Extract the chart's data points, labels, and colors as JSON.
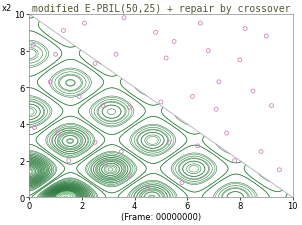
{
  "title": "modified E-PBIL(50,25) + repair by crossover",
  "xlabel": "(Frame: 00000000)",
  "ylabel": "x2",
  "xlim": [
    0,
    10
  ],
  "ylim": [
    0,
    10
  ],
  "xticks": [
    0,
    2,
    4,
    6,
    8,
    10
  ],
  "yticks": [
    0,
    2,
    4,
    6,
    8,
    10
  ],
  "contour_color": "#44aa55",
  "scatter_color": "#cc88bb",
  "scatter_size": 8,
  "scatter_points": [
    [
      0.15,
      8.3
    ],
    [
      1.3,
      9.1
    ],
    [
      2.1,
      9.5
    ],
    [
      3.6,
      9.8
    ],
    [
      1.0,
      7.8
    ],
    [
      2.5,
      7.3
    ],
    [
      3.3,
      7.8
    ],
    [
      5.2,
      7.6
    ],
    [
      0.8,
      6.3
    ],
    [
      1.9,
      5.5
    ],
    [
      2.8,
      5.0
    ],
    [
      3.8,
      4.9
    ],
    [
      0.2,
      3.8
    ],
    [
      1.1,
      3.5
    ],
    [
      2.5,
      3.0
    ],
    [
      3.5,
      2.5
    ],
    [
      1.5,
      2.0
    ],
    [
      2.9,
      1.8
    ],
    [
      3.8,
      1.2
    ],
    [
      5.0,
      5.2
    ],
    [
      6.2,
      5.5
    ],
    [
      7.1,
      4.8
    ],
    [
      5.3,
      3.0
    ],
    [
      6.4,
      2.8
    ],
    [
      7.5,
      3.5
    ],
    [
      5.5,
      8.5
    ],
    [
      6.8,
      8.0
    ],
    [
      8.0,
      7.5
    ],
    [
      7.2,
      6.3
    ],
    [
      8.5,
      5.8
    ],
    [
      9.2,
      5.0
    ],
    [
      7.8,
      2.0
    ],
    [
      8.8,
      2.5
    ],
    [
      9.5,
      1.5
    ],
    [
      9.0,
      8.8
    ],
    [
      8.2,
      9.2
    ],
    [
      4.8,
      9.0
    ],
    [
      6.5,
      9.5
    ],
    [
      4.5,
      0.5
    ],
    [
      5.8,
      0.8
    ]
  ],
  "constraint_line_x": [
    0,
    10
  ],
  "constraint_line_y": [
    10,
    0
  ],
  "bg_color": "#ffffff",
  "title_fontsize": 7,
  "label_fontsize": 6,
  "tick_fontsize": 6,
  "n_contour_levels": 25,
  "contour_linewidth": 0.5
}
